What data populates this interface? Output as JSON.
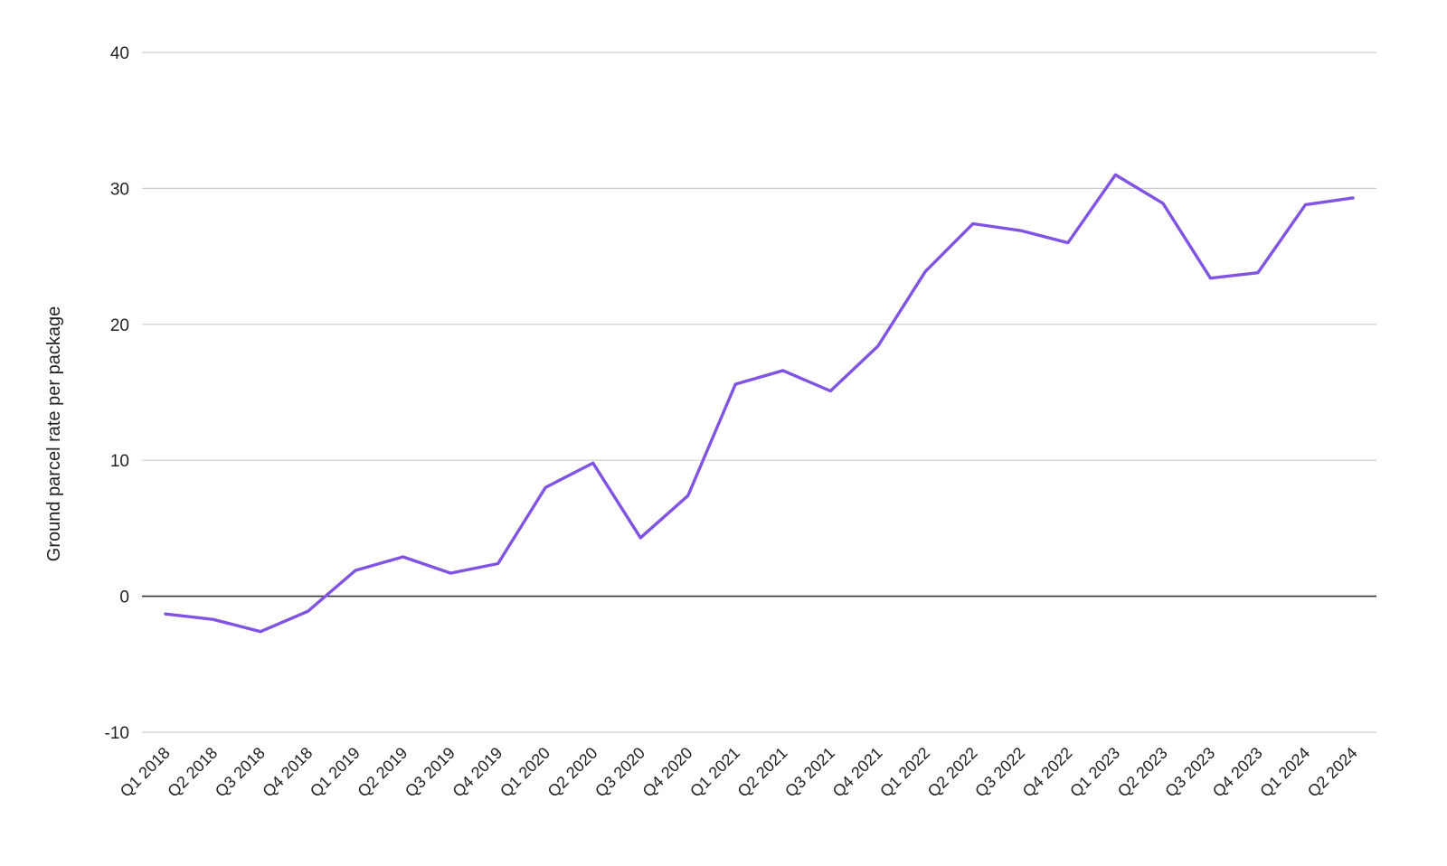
{
  "chart_data": {
    "type": "line",
    "title": "",
    "xlabel": "",
    "ylabel": "Ground parcel rate per package",
    "ylim": [
      -10,
      40
    ],
    "yticks": [
      -10,
      0,
      10,
      20,
      30,
      40
    ],
    "grid": true,
    "legend": "none",
    "categories": [
      "Q1 2018",
      "Q2 2018",
      "Q3 2018",
      "Q4 2018",
      "Q1 2019",
      "Q2 2019",
      "Q3 2019",
      "Q4 2019",
      "Q1 2020",
      "Q2 2020",
      "Q3 2020",
      "Q4 2020",
      "Q1 2021",
      "Q2 2021",
      "Q3 2021",
      "Q4 2021",
      "Q1 2022",
      "Q2 2022",
      "Q3 2022",
      "Q4 2022",
      "Q1 2023",
      "Q2 2023",
      "Q3 2023",
      "Q4 2023",
      "Q1 2024",
      "Q2 2024"
    ],
    "series": [
      {
        "color": "#8153e3",
        "values": [
          -1.3,
          -1.7,
          -2.6,
          -1.1,
          1.9,
          2.9,
          1.7,
          2.4,
          8.0,
          9.8,
          4.3,
          7.4,
          15.6,
          16.6,
          15.1,
          18.4,
          23.9,
          27.4,
          26.9,
          26.0,
          31.0,
          28.9,
          23.4,
          23.8,
          28.8,
          29.3
        ]
      }
    ],
    "colors": {
      "grid": "#cccccc",
      "zero_line": "#333333",
      "text": "#222222"
    }
  }
}
